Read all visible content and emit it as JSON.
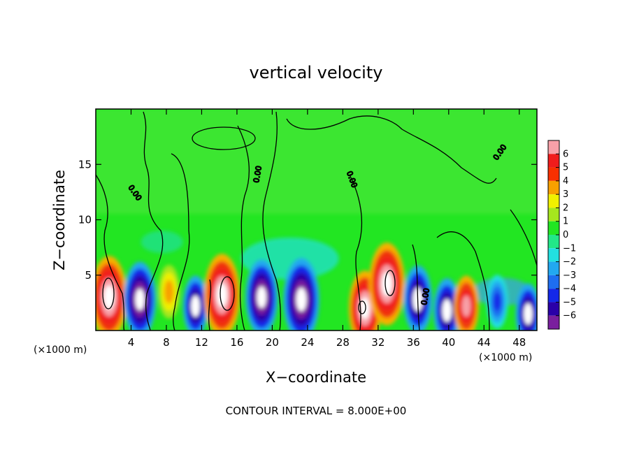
{
  "chart_data": {
    "type": "heatmap",
    "title": "vertical velocity",
    "xlabel": "X−coordinate",
    "ylabel": "Z−coordinate",
    "x_unit_left": "(×1000 m)",
    "x_unit_right": "(×1000 m)",
    "xlim": [
      0,
      50
    ],
    "ylim": [
      0,
      20
    ],
    "x_ticks": [
      4,
      8,
      12,
      16,
      20,
      24,
      28,
      32,
      36,
      40,
      44,
      48
    ],
    "y_ticks": [
      5,
      10,
      15
    ],
    "colorbar": {
      "levels": [
        -6,
        -5,
        -4,
        -3,
        -2,
        -1,
        0,
        1,
        2,
        3,
        4,
        5,
        6
      ],
      "labels": [
        "6",
        "5",
        "4",
        "3",
        "2",
        "1",
        "0",
        "−1",
        "−2",
        "−3",
        "−4",
        "−5",
        "−6"
      ],
      "colors": [
        "#7a1f9e",
        "#2a00a8",
        "#1428e8",
        "#1e6ef0",
        "#22a8f0",
        "#22e0e0",
        "#22e888",
        "#22e622",
        "#a6e61e",
        "#f0f000",
        "#f8a000",
        "#f83000",
        "#f01c1c",
        "#f8a0a8"
      ]
    },
    "contour_labels": [
      "0.00",
      "0.00",
      "0.00",
      "0.00",
      "0.00"
    ],
    "updrafts": [
      {
        "x": 1.5,
        "z": 3.0,
        "w": 12
      },
      {
        "x": 5.0,
        "z": 2.8,
        "w": -10
      },
      {
        "x": 8.3,
        "z": 3.5,
        "w": 4
      },
      {
        "x": 11.3,
        "z": 2.2,
        "w": -6
      },
      {
        "x": 14.3,
        "z": 3.2,
        "w": 12
      },
      {
        "x": 18.8,
        "z": 3.0,
        "w": -10
      },
      {
        "x": 23.3,
        "z": 2.8,
        "w": -12
      },
      {
        "x": 30.5,
        "z": 2.0,
        "w": 10
      },
      {
        "x": 33.0,
        "z": 4.2,
        "w": 12
      },
      {
        "x": 36.5,
        "z": 2.8,
        "w": -8
      },
      {
        "x": 39.8,
        "z": 1.8,
        "w": -7
      },
      {
        "x": 42.0,
        "z": 2.2,
        "w": 6
      },
      {
        "x": 45.5,
        "z": 2.6,
        "w": -4
      },
      {
        "x": 49.0,
        "z": 1.5,
        "w": -6
      }
    ]
  },
  "footer": "CONTOUR INTERVAL = 8.000E+00"
}
